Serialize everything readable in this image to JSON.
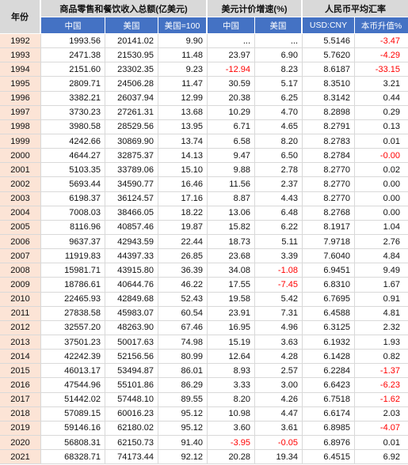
{
  "colors": {
    "header_gray": "#D9D9D9",
    "header_blue": "#4472C4",
    "year_fill": "#FCE4D6",
    "negative": "#FF0000",
    "border": "#D9D9D9"
  },
  "chart_data": {
    "type": "table",
    "header_groups": [
      "年份",
      "商品零售和餐饮收入总额(亿美元)",
      "美元计价增速(%)",
      "人民币平均汇率"
    ],
    "columns": [
      "中国",
      "美国",
      "美国=100",
      "中国",
      "美国",
      "USD:CNY",
      "本币升值%"
    ],
    "rows": [
      [
        "1992",
        "1993.56",
        "20141.02",
        "9.90",
        "...",
        "...",
        "5.5146",
        "-3.47"
      ],
      [
        "1993",
        "2471.38",
        "21530.95",
        "11.48",
        "23.97",
        "6.90",
        "5.7620",
        "-4.29"
      ],
      [
        "1994",
        "2151.60",
        "23302.35",
        "9.23",
        "-12.94",
        "8.23",
        "8.6187",
        "-33.15"
      ],
      [
        "1995",
        "2809.71",
        "24506.28",
        "11.47",
        "30.59",
        "5.17",
        "8.3510",
        "3.21"
      ],
      [
        "1996",
        "3382.21",
        "26037.94",
        "12.99",
        "20.38",
        "6.25",
        "8.3142",
        "0.44"
      ],
      [
        "1997",
        "3730.23",
        "27261.31",
        "13.68",
        "10.29",
        "4.70",
        "8.2898",
        "0.29"
      ],
      [
        "1998",
        "3980.58",
        "28529.56",
        "13.95",
        "6.71",
        "4.65",
        "8.2791",
        "0.13"
      ],
      [
        "1999",
        "4242.66",
        "30869.90",
        "13.74",
        "6.58",
        "8.20",
        "8.2783",
        "0.01"
      ],
      [
        "2000",
        "4644.27",
        "32875.37",
        "14.13",
        "9.47",
        "6.50",
        "8.2784",
        "-0.00"
      ],
      [
        "2001",
        "5103.35",
        "33789.06",
        "15.10",
        "9.88",
        "2.78",
        "8.2770",
        "0.02"
      ],
      [
        "2002",
        "5693.44",
        "34590.77",
        "16.46",
        "11.56",
        "2.37",
        "8.2770",
        "0.00"
      ],
      [
        "2003",
        "6198.37",
        "36124.57",
        "17.16",
        "8.87",
        "4.43",
        "8.2770",
        "0.00"
      ],
      [
        "2004",
        "7008.03",
        "38466.05",
        "18.22",
        "13.06",
        "6.48",
        "8.2768",
        "0.00"
      ],
      [
        "2005",
        "8116.96",
        "40857.46",
        "19.87",
        "15.82",
        "6.22",
        "8.1917",
        "1.04"
      ],
      [
        "2006",
        "9637.37",
        "42943.59",
        "22.44",
        "18.73",
        "5.11",
        "7.9718",
        "2.76"
      ],
      [
        "2007",
        "11919.83",
        "44397.33",
        "26.85",
        "23.68",
        "3.39",
        "7.6040",
        "4.84"
      ],
      [
        "2008",
        "15981.71",
        "43915.80",
        "36.39",
        "34.08",
        "-1.08",
        "6.9451",
        "9.49"
      ],
      [
        "2009",
        "18786.61",
        "40644.76",
        "46.22",
        "17.55",
        "-7.45",
        "6.8310",
        "1.67"
      ],
      [
        "2010",
        "22465.93",
        "42849.68",
        "52.43",
        "19.58",
        "5.42",
        "6.7695",
        "0.91"
      ],
      [
        "2011",
        "27838.58",
        "45983.07",
        "60.54",
        "23.91",
        "7.31",
        "6.4588",
        "4.81"
      ],
      [
        "2012",
        "32557.20",
        "48263.90",
        "67.46",
        "16.95",
        "4.96",
        "6.3125",
        "2.32"
      ],
      [
        "2013",
        "37501.23",
        "50017.63",
        "74.98",
        "15.19",
        "3.63",
        "6.1932",
        "1.93"
      ],
      [
        "2014",
        "42242.39",
        "52156.56",
        "80.99",
        "12.64",
        "4.28",
        "6.1428",
        "0.82"
      ],
      [
        "2015",
        "46013.17",
        "53494.87",
        "86.01",
        "8.93",
        "2.57",
        "6.2284",
        "-1.37"
      ],
      [
        "2016",
        "47544.96",
        "55101.86",
        "86.29",
        "3.33",
        "3.00",
        "6.6423",
        "-6.23"
      ],
      [
        "2017",
        "51442.02",
        "57448.10",
        "89.55",
        "8.20",
        "4.26",
        "6.7518",
        "-1.62"
      ],
      [
        "2018",
        "57089.15",
        "60016.23",
        "95.12",
        "10.98",
        "4.47",
        "6.6174",
        "2.03"
      ],
      [
        "2019",
        "59146.16",
        "62180.02",
        "95.12",
        "3.60",
        "3.61",
        "6.8985",
        "-4.07"
      ],
      [
        "2020",
        "56808.31",
        "62150.73",
        "91.40",
        "-3.95",
        "-0.05",
        "6.8976",
        "0.01"
      ],
      [
        "2021",
        "68328.71",
        "74173.44",
        "92.12",
        "20.28",
        "19.34",
        "6.4515",
        "6.92"
      ]
    ]
  }
}
